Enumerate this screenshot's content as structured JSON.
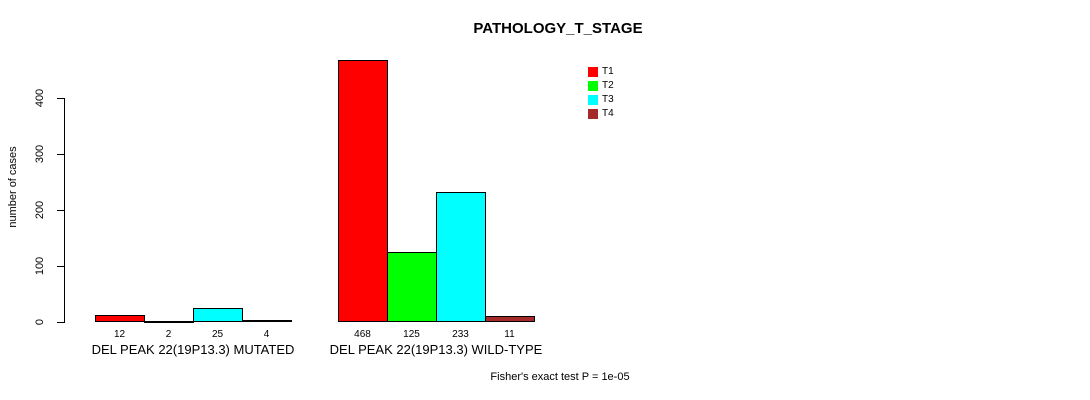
{
  "chart_data": {
    "type": "bar",
    "title": "PATHOLOGY_T_STAGE",
    "xlabel": "",
    "ylabel": "number of cases",
    "categories": [
      "DEL PEAK 22(19P13.3) MUTATED",
      "DEL PEAK 22(19P13.3) WILD-TYPE"
    ],
    "series": [
      {
        "name": "T1",
        "color": "#FF0000",
        "values": [
          12,
          468
        ]
      },
      {
        "name": "T2",
        "color": "#00FF00",
        "values": [
          2,
          125
        ]
      },
      {
        "name": "T3",
        "color": "#00FFFF",
        "values": [
          25,
          233
        ]
      },
      {
        "name": "T4",
        "color": "#A52A2A",
        "values": [
          4,
          11
        ]
      }
    ],
    "yticks": [
      0,
      100,
      200,
      300,
      400
    ],
    "ylim": [
      0,
      475
    ],
    "grid": false,
    "legend_position": "top-right",
    "bar_border_color": "#000000",
    "annotation": "Fisher's exact test P = 1e-05"
  }
}
